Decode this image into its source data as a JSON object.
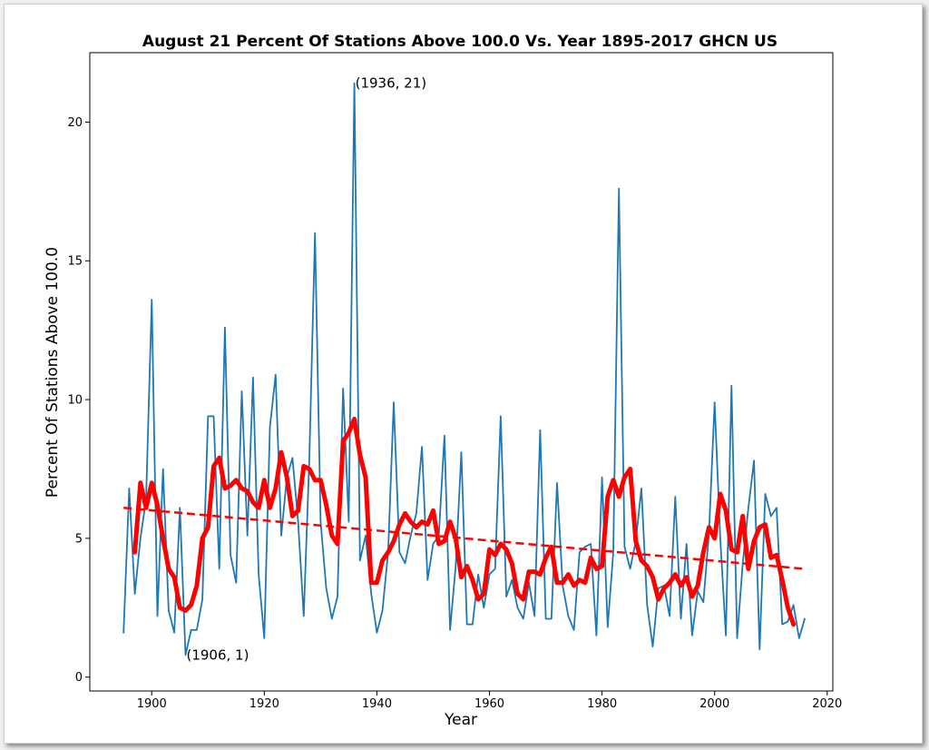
{
  "chart_data": {
    "type": "line",
    "title": "August 21 Percent Of Stations Above 100.0 Vs. Year 1895-2017 GHCN US",
    "xlabel": "Year",
    "ylabel": "Percent Of Stations Above 100.0",
    "xlim": [
      1889,
      2021
    ],
    "ylim": [
      -0.5,
      22.5
    ],
    "xticks": [
      1900,
      1920,
      1940,
      1960,
      1980,
      2000,
      2020
    ],
    "yticks": [
      0,
      5,
      10,
      15,
      20
    ],
    "grid": false,
    "legend": "none",
    "series": [
      {
        "style": "raw",
        "color": "#1f77b4",
        "x": [
          1895,
          1896,
          1897,
          1898,
          1899,
          1900,
          1901,
          1902,
          1903,
          1904,
          1905,
          1906,
          1907,
          1908,
          1909,
          1910,
          1911,
          1912,
          1913,
          1914,
          1915,
          1916,
          1917,
          1918,
          1919,
          1920,
          1921,
          1922,
          1923,
          1924,
          1925,
          1926,
          1927,
          1928,
          1929,
          1930,
          1931,
          1932,
          1933,
          1934,
          1935,
          1936,
          1937,
          1938,
          1939,
          1940,
          1941,
          1942,
          1943,
          1944,
          1945,
          1946,
          1947,
          1948,
          1949,
          1950,
          1951,
          1952,
          1953,
          1954,
          1955,
          1956,
          1957,
          1958,
          1959,
          1960,
          1961,
          1962,
          1963,
          1964,
          1965,
          1966,
          1967,
          1968,
          1969,
          1970,
          1971,
          1972,
          1973,
          1974,
          1975,
          1976,
          1977,
          1978,
          1979,
          1980,
          1981,
          1982,
          1983,
          1984,
          1985,
          1986,
          1987,
          1988,
          1989,
          1990,
          1991,
          1992,
          1993,
          1994,
          1995,
          1996,
          1997,
          1998,
          1999,
          2000,
          2001,
          2002,
          2003,
          2004,
          2005,
          2006,
          2007,
          2008,
          2009,
          2010,
          2011,
          2012,
          2013,
          2014,
          2015,
          2016
        ],
        "y": [
          1.6,
          6.8,
          3.0,
          5.0,
          6.4,
          13.6,
          2.2,
          7.5,
          2.4,
          1.6,
          6.1,
          0.8,
          1.7,
          1.7,
          2.8,
          9.4,
          9.4,
          3.9,
          12.6,
          4.4,
          3.4,
          10.3,
          5.1,
          10.8,
          3.7,
          1.4,
          9.0,
          10.9,
          5.1,
          7.2,
          7.9,
          5.6,
          2.2,
          7.9,
          16.0,
          5.6,
          3.2,
          2.1,
          2.9,
          10.4,
          5.6,
          21.4,
          4.2,
          5.1,
          3.0,
          1.6,
          2.4,
          4.5,
          9.9,
          4.5,
          4.1,
          5.1,
          5.9,
          8.3,
          3.5,
          4.8,
          5.1,
          8.7,
          1.7,
          4.0,
          8.1,
          1.9,
          1.9,
          3.7,
          2.5,
          3.7,
          3.9,
          9.4,
          2.9,
          3.5,
          2.5,
          2.1,
          3.4,
          2.2,
          8.9,
          2.1,
          2.1,
          7.0,
          3.3,
          2.2,
          1.7,
          4.5,
          4.7,
          4.8,
          1.5,
          7.2,
          1.8,
          4.5,
          17.6,
          4.7,
          3.9,
          4.9,
          6.8,
          2.6,
          1.1,
          3.2,
          3.3,
          2.2,
          6.5,
          2.1,
          4.8,
          1.5,
          3.1,
          2.7,
          5.2,
          9.9,
          5.0,
          1.5,
          10.5,
          1.4,
          4.1,
          6.1,
          7.8,
          1.0,
          6.6,
          5.8,
          6.1,
          1.9,
          2.0,
          2.6,
          1.4,
          2.1
        ]
      },
      {
        "style": "moving-average",
        "color": "#ff0000",
        "x": [
          1897,
          1898,
          1899,
          1900,
          1901,
          1902,
          1903,
          1904,
          1905,
          1906,
          1907,
          1908,
          1909,
          1910,
          1911,
          1912,
          1913,
          1914,
          1915,
          1916,
          1917,
          1918,
          1919,
          1920,
          1921,
          1922,
          1923,
          1924,
          1925,
          1926,
          1927,
          1928,
          1929,
          1930,
          1931,
          1932,
          1933,
          1934,
          1935,
          1936,
          1937,
          1938,
          1939,
          1940,
          1941,
          1942,
          1943,
          1944,
          1945,
          1946,
          1947,
          1948,
          1949,
          1950,
          1951,
          1952,
          1953,
          1954,
          1955,
          1956,
          1957,
          1958,
          1959,
          1960,
          1961,
          1962,
          1963,
          1964,
          1965,
          1966,
          1967,
          1968,
          1969,
          1970,
          1971,
          1972,
          1973,
          1974,
          1975,
          1976,
          1977,
          1978,
          1979,
          1980,
          1981,
          1982,
          1983,
          1984,
          1985,
          1986,
          1987,
          1988,
          1989,
          1990,
          1991,
          1992,
          1993,
          1994,
          1995,
          1996,
          1997,
          1998,
          1999,
          2000,
          2001,
          2002,
          2003,
          2004,
          2005,
          2006,
          2007,
          2008,
          2009,
          2010,
          2011,
          2012,
          2013,
          2014
        ],
        "y": [
          4.5,
          7.0,
          6.1,
          7.0,
          6.2,
          5.0,
          3.9,
          3.6,
          2.5,
          2.4,
          2.6,
          3.3,
          5.0,
          5.4,
          7.6,
          7.9,
          6.8,
          6.9,
          7.1,
          6.8,
          6.7,
          6.3,
          6.1,
          7.1,
          6.1,
          6.8,
          8.1,
          7.2,
          5.8,
          6.0,
          7.6,
          7.5,
          7.1,
          7.1,
          6.2,
          5.1,
          4.8,
          8.5,
          8.8,
          9.3,
          8.0,
          7.2,
          3.4,
          3.4,
          4.2,
          4.5,
          4.9,
          5.5,
          5.9,
          5.6,
          5.4,
          5.6,
          5.5,
          6.0,
          4.8,
          4.9,
          5.6,
          5.0,
          3.6,
          4.0,
          3.5,
          2.8,
          3.0,
          4.6,
          4.4,
          4.8,
          4.6,
          4.1,
          3.0,
          2.8,
          3.8,
          3.8,
          3.7,
          4.3,
          4.7,
          3.4,
          3.4,
          3.7,
          3.3,
          3.5,
          3.4,
          4.3,
          3.9,
          4.0,
          6.5,
          7.1,
          6.5,
          7.2,
          7.5,
          4.9,
          4.2,
          4.0,
          3.6,
          2.8,
          3.2,
          3.4,
          3.7,
          3.3,
          3.6,
          2.9,
          3.3,
          4.5,
          5.4,
          5.0,
          6.6,
          6.0,
          4.6,
          4.5,
          5.8,
          3.9,
          4.9,
          5.4,
          5.5,
          4.3,
          4.4,
          3.5,
          2.5,
          1.9
        ]
      },
      {
        "style": "trend",
        "color": "#ff0000",
        "x": [
          1895,
          2016
        ],
        "y": [
          6.1,
          3.9
        ]
      }
    ],
    "annotations": [
      {
        "text": "(1936, 21)",
        "x": 1936,
        "y": 21.4
      },
      {
        "text": "(1906, 1)",
        "x": 1906,
        "y": 0.8
      }
    ]
  }
}
